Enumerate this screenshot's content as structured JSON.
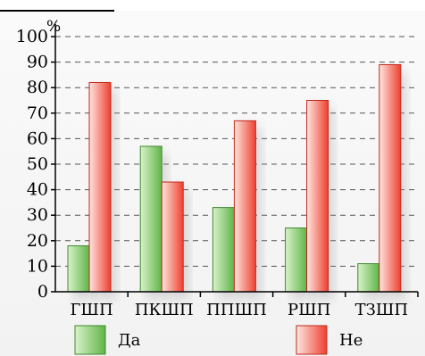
{
  "chart_data": {
    "type": "bar",
    "unit_label": "%",
    "categories": [
      "ГШП",
      "ПКШП",
      "ППШП",
      "РШП",
      "ТЗШП"
    ],
    "series": [
      {
        "name": "Да",
        "values": [
          18,
          57,
          33,
          25,
          11
        ],
        "color_light": "#d9f2c9",
        "color_dark": "#5fb548",
        "border": "#3f8a2e"
      },
      {
        "name": "Не",
        "values": [
          82,
          43,
          67,
          75,
          89
        ],
        "color_light": "#fde6df",
        "color_dark": "#ef4030",
        "border": "#c2281a"
      }
    ],
    "ylim": [
      0,
      100
    ],
    "yticks": [
      0,
      10,
      20,
      30,
      40,
      50,
      60,
      70,
      80,
      90,
      100
    ],
    "grid": "dashed-horizontal",
    "legend_position": "bottom"
  },
  "colors": {
    "background_panel": "#f2f2f2",
    "axis": "#000000",
    "grid": "#555555"
  }
}
